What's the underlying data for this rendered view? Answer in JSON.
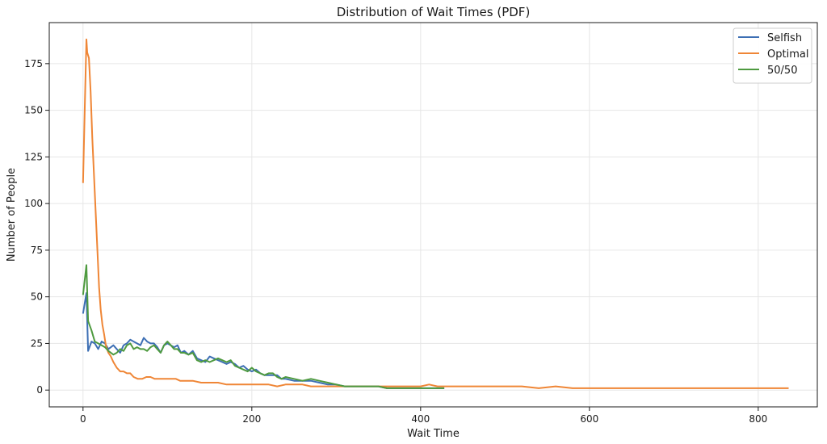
{
  "chart_data": {
    "type": "line",
    "title": "Distribution of Wait Times (PDF)",
    "xlabel": "Wait Time",
    "ylabel": "Number of People",
    "xlim": [
      -40,
      870
    ],
    "ylim": [
      -9,
      197
    ],
    "xticks": [
      0,
      200,
      400,
      600,
      800
    ],
    "yticks": [
      0,
      25,
      50,
      75,
      100,
      125,
      150,
      175
    ],
    "grid": true,
    "legend_position": "top-right",
    "series": [
      {
        "name": "Selfish",
        "color": "#3d6fb4",
        "x": [
          0,
          4,
          6,
          10,
          14,
          18,
          22,
          26,
          30,
          36,
          40,
          44,
          48,
          52,
          56,
          60,
          64,
          68,
          72,
          76,
          80,
          84,
          88,
          92,
          96,
          100,
          104,
          108,
          112,
          116,
          120,
          125,
          130,
          135,
          140,
          145,
          150,
          155,
          160,
          165,
          170,
          175,
          180,
          185,
          190,
          195,
          200,
          205,
          210,
          215,
          220,
          225,
          230,
          235,
          240,
          250,
          260,
          270,
          280,
          290,
          300,
          310,
          320,
          330,
          340,
          350,
          360,
          370,
          380,
          390,
          400,
          410,
          420,
          428
        ],
        "y": [
          41,
          52,
          21,
          26,
          25,
          22,
          26,
          25,
          22,
          24,
          22,
          20,
          24,
          25,
          27,
          26,
          25,
          24,
          28,
          26,
          25,
          25,
          23,
          20,
          24,
          25,
          24,
          23,
          24,
          20,
          21,
          19,
          21,
          17,
          16,
          15,
          18,
          17,
          16,
          15,
          14,
          15,
          14,
          12,
          13,
          11,
          10,
          11,
          9,
          8,
          8,
          8,
          8,
          6,
          6,
          5,
          5,
          5,
          4,
          3,
          3,
          2,
          2,
          2,
          2,
          2,
          1,
          1,
          1,
          1,
          1,
          1,
          1,
          1
        ]
      },
      {
        "name": "Optimal",
        "color": "#ef8636",
        "x": [
          0,
          2,
          4,
          5,
          7,
          9,
          11,
          13,
          15,
          17,
          19,
          21,
          23,
          25,
          27,
          30,
          33,
          36,
          40,
          44,
          48,
          52,
          56,
          60,
          65,
          70,
          75,
          80,
          85,
          90,
          95,
          100,
          105,
          110,
          115,
          120,
          130,
          140,
          150,
          160,
          170,
          180,
          190,
          200,
          210,
          220,
          230,
          240,
          250,
          260,
          270,
          280,
          290,
          300,
          320,
          340,
          360,
          380,
          400,
          410,
          420,
          430,
          440,
          460,
          480,
          500,
          520,
          540,
          560,
          580,
          600,
          620,
          640,
          660,
          680,
          700,
          720,
          740,
          760,
          780,
          800,
          820,
          836
        ],
        "y": [
          111,
          150,
          188,
          181,
          178,
          160,
          135,
          115,
          95,
          75,
          55,
          43,
          35,
          30,
          24,
          20,
          18,
          15,
          12,
          10,
          10,
          9,
          9,
          7,
          6,
          6,
          7,
          7,
          6,
          6,
          6,
          6,
          6,
          6,
          5,
          5,
          5,
          4,
          4,
          4,
          3,
          3,
          3,
          3,
          3,
          3,
          2,
          3,
          3,
          3,
          2,
          2,
          2,
          2,
          2,
          2,
          2,
          2,
          2,
          3,
          2,
          2,
          2,
          2,
          2,
          2,
          2,
          1,
          2,
          1,
          1,
          1,
          1,
          1,
          1,
          1,
          1,
          1,
          1,
          1,
          1,
          1,
          1
        ]
      },
      {
        "name": "50/50",
        "color": "#4e9a3f",
        "x": [
          0,
          4,
          6,
          10,
          14,
          18,
          22,
          26,
          30,
          36,
          40,
          44,
          48,
          52,
          56,
          60,
          64,
          68,
          72,
          76,
          80,
          84,
          88,
          92,
          96,
          100,
          104,
          108,
          112,
          116,
          120,
          125,
          130,
          135,
          140,
          145,
          150,
          155,
          160,
          165,
          170,
          175,
          180,
          185,
          190,
          195,
          200,
          205,
          210,
          215,
          220,
          225,
          230,
          235,
          240,
          250,
          260,
          270,
          280,
          290,
          300,
          310,
          320,
          330,
          340,
          350,
          360,
          370,
          380,
          390,
          400,
          410,
          420,
          428
        ],
        "y": [
          51,
          67,
          37,
          32,
          26,
          25,
          24,
          23,
          21,
          19,
          20,
          22,
          21,
          24,
          25,
          22,
          23,
          22,
          22,
          21,
          23,
          24,
          22,
          20,
          24,
          26,
          24,
          22,
          22,
          20,
          20,
          19,
          20,
          16,
          15,
          16,
          15,
          16,
          17,
          16,
          15,
          16,
          13,
          12,
          11,
          10,
          12,
          10,
          9,
          8,
          9,
          9,
          7,
          6,
          7,
          6,
          5,
          6,
          5,
          4,
          3,
          2,
          2,
          2,
          2,
          2,
          1,
          1,
          1,
          1,
          1,
          1,
          1,
          1
        ]
      }
    ]
  }
}
